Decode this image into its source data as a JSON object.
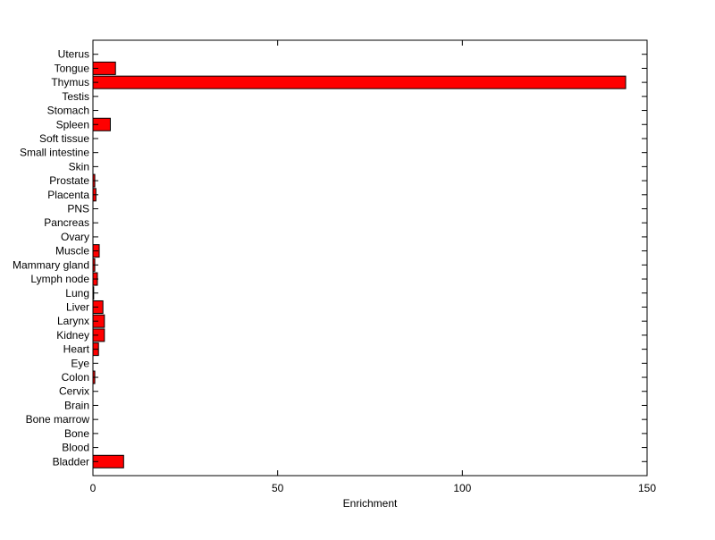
{
  "chart_data": {
    "type": "bar",
    "orientation": "horizontal",
    "title": "",
    "xlabel": "Enrichment",
    "ylabel": "",
    "xlim": [
      0,
      150
    ],
    "xticks": [
      0,
      50,
      100,
      150
    ],
    "grid": false,
    "bar_color": "#ff0000",
    "edge_color": "#000000",
    "categories": [
      "Bladder",
      "Blood",
      "Bone",
      "Bone marrow",
      "Brain",
      "Cervix",
      "Colon",
      "Eye",
      "Heart",
      "Kidney",
      "Larynx",
      "Liver",
      "Lung",
      "Lymph node",
      "Mammary gland",
      "Muscle",
      "Ovary",
      "Pancreas",
      "PNS",
      "Placenta",
      "Prostate",
      "Skin",
      "Small intestine",
      "Soft tissue",
      "Spleen",
      "Stomach",
      "Testis",
      "Thymus",
      "Tongue",
      "Uterus"
    ],
    "values": [
      8.3,
      0,
      0,
      0,
      0,
      0,
      0.5,
      0,
      1.5,
      3.1,
      3.1,
      2.7,
      0.2,
      1.2,
      0.5,
      1.7,
      0,
      0,
      0,
      0.8,
      0.5,
      0,
      0,
      0,
      4.7,
      0,
      0,
      144.2,
      6.1,
      0
    ]
  }
}
